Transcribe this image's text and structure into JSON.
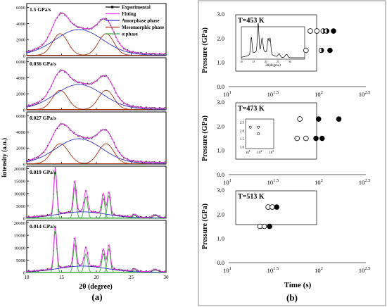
{
  "panel_labels": [
    "(a)",
    "(b)"
  ],
  "chart_data": [
    {
      "id": "panel-a",
      "type": "line",
      "xlabel": "2θ (degree)",
      "ylabel": "Intensity (a.u.)",
      "x_ticks": [
        10,
        15,
        20,
        25,
        30
      ],
      "xlim": [
        10,
        30
      ],
      "legend": {
        "placement": "top-right",
        "entries": [
          {
            "name": "Experimental",
            "color": "#000000",
            "style": "line-square"
          },
          {
            "name": "Fitting",
            "color": "#ff33ff",
            "style": "line"
          },
          {
            "name": "Amorphase phase",
            "color": "#3333cc",
            "style": "line"
          },
          {
            "name": "Mesomorphic phase",
            "color": "#aa3311",
            "style": "line"
          },
          {
            "name": "α phase",
            "color": "#33aa33",
            "style": "line"
          }
        ]
      },
      "subplots": [
        {
          "label": "1.5 GPa/s",
          "y_ticks": [
            0,
            2000,
            4000,
            6000
          ],
          "ylim": [
            0,
            6500
          ],
          "kind": "meso",
          "meso_peaks": [
            {
              "center": 14.8,
              "height": 2700,
              "width": 1.1
            },
            {
              "center": 21.4,
              "height": 2700,
              "width": 1.1
            }
          ],
          "amorphous": {
            "center": 17.5,
            "height": 3200,
            "width": 3.4
          },
          "baseline": 200
        },
        {
          "label": "0.036 GPa/s",
          "y_ticks": [
            0,
            2000,
            4000,
            6000
          ],
          "ylim": [
            0,
            6500
          ],
          "kind": "meso",
          "meso_peaks": [
            {
              "center": 14.8,
              "height": 2400,
              "width": 1.1
            },
            {
              "center": 21.4,
              "height": 2400,
              "width": 1.1
            }
          ],
          "amorphous": {
            "center": 17.5,
            "height": 3100,
            "width": 3.4
          },
          "baseline": 200
        },
        {
          "label": "0.027 GPa/s",
          "y_ticks": [
            0,
            2000,
            4000,
            6000
          ],
          "ylim": [
            0,
            6500
          ],
          "kind": "meso",
          "meso_peaks": [
            {
              "center": 14.8,
              "height": 2500,
              "width": 1.2
            },
            {
              "center": 21.4,
              "height": 2500,
              "width": 1.1
            }
          ],
          "amorphous": {
            "center": 17.5,
            "height": 3100,
            "width": 3.3
          },
          "baseline": 200
        },
        {
          "label": "0.019 GPa/s",
          "y_ticks": [
            0,
            5000,
            10000,
            15000,
            20000
          ],
          "ylim": [
            0,
            21000
          ],
          "kind": "alpha",
          "alpha_peaks": [
            {
              "center": 14.1,
              "height": 18500,
              "width": 0.22
            },
            {
              "center": 16.9,
              "height": 12500,
              "width": 0.22
            },
            {
              "center": 18.5,
              "height": 8500,
              "width": 0.25
            },
            {
              "center": 21.0,
              "height": 8000,
              "width": 0.22
            },
            {
              "center": 21.8,
              "height": 9000,
              "width": 0.22
            },
            {
              "center": 25.5,
              "height": 1000,
              "width": 0.3
            },
            {
              "center": 28.5,
              "height": 1000,
              "width": 0.4
            }
          ],
          "amorphous": {
            "center": 18.0,
            "height": 2500,
            "width": 3.5
          },
          "baseline": 300
        },
        {
          "label": "0.014 GPa/s",
          "y_ticks": [
            0,
            5000,
            10000,
            15000,
            20000
          ],
          "ylim": [
            0,
            21000
          ],
          "kind": "alpha",
          "alpha_peaks": [
            {
              "center": 14.1,
              "height": 16500,
              "width": 0.22
            },
            {
              "center": 16.9,
              "height": 11500,
              "width": 0.22
            },
            {
              "center": 18.5,
              "height": 7500,
              "width": 0.25
            },
            {
              "center": 21.0,
              "height": 7500,
              "width": 0.22
            },
            {
              "center": 21.8,
              "height": 9500,
              "width": 0.22
            },
            {
              "center": 25.5,
              "height": 900,
              "width": 0.3
            },
            {
              "center": 28.5,
              "height": 900,
              "width": 0.4
            }
          ],
          "amorphous": {
            "center": 18.0,
            "height": 2500,
            "width": 3.5
          },
          "baseline": 300
        }
      ]
    },
    {
      "id": "panel-b",
      "type": "scatter",
      "xlabel": "Time (s)",
      "ylabel": "Pressure (GPa)",
      "x_scale": "log10",
      "xlim": [
        10,
        316.2
      ],
      "x_ticks": [
        {
          "value": 10,
          "base": "10",
          "exp": "1"
        },
        {
          "value": 31.62,
          "base": "10",
          "exp": "1.5"
        },
        {
          "value": 100,
          "base": "10",
          "exp": "2"
        },
        {
          "value": 316.2,
          "base": "10",
          "exp": "2.5"
        }
      ],
      "y_ticks": [
        "0.0",
        "1.0",
        "2.0",
        "3.0"
      ],
      "ylim": [
        0,
        3
      ],
      "marker_fill": {
        "open": "#ffffff",
        "half": "half",
        "filled": "#000000"
      },
      "subplots": [
        {
          "label": "T=453 K",
          "points": [
            {
              "t": 70,
              "p": 1.5,
              "fill": "open"
            },
            {
              "t": 78,
              "p": 2.3,
              "fill": "open"
            },
            {
              "t": 92,
              "p": 2.3,
              "fill": "open"
            },
            {
              "t": 103,
              "p": 1.5,
              "fill": "half"
            },
            {
              "t": 108,
              "p": 2.3,
              "fill": "half"
            },
            {
              "t": 118,
              "p": 2.3,
              "fill": "half"
            },
            {
              "t": 128,
              "p": 1.5,
              "fill": "filled"
            },
            {
              "t": 140,
              "p": 2.3,
              "fill": "filled"
            }
          ],
          "inset": {
            "type": "line",
            "xlabel": "2θ(degree)",
            "x_ticks": [
              10,
              15,
              20,
              25,
              30
            ],
            "xlim": [
              10,
              36
            ],
            "peaks": [
              {
                "center": 14.1,
                "height": 0.6,
                "width": 0.3
              },
              {
                "center": 16.9,
                "height": 1.0,
                "width": 0.3
              },
              {
                "center": 18.5,
                "height": 0.45,
                "width": 0.35
              },
              {
                "center": 21.0,
                "height": 0.5,
                "width": 0.3
              },
              {
                "center": 21.8,
                "height": 0.55,
                "width": 0.3
              },
              {
                "center": 25.5,
                "height": 0.12,
                "width": 0.4
              },
              {
                "center": 28.5,
                "height": 0.12,
                "width": 0.5
              }
            ],
            "halo": {
              "center": 18.0,
              "height": 0.25,
              "width": 3.5
            }
          }
        },
        {
          "label": "T=473 K",
          "points": [
            {
              "t": 56,
              "p": 1.5,
              "fill": "open"
            },
            {
              "t": 60,
              "p": 2.3,
              "fill": "open"
            },
            {
              "t": 70,
              "p": 1.5,
              "fill": "open"
            },
            {
              "t": 90,
              "p": 1.5,
              "fill": "filled"
            },
            {
              "t": 96,
              "p": 2.3,
              "fill": "filled"
            },
            {
              "t": 105,
              "p": 1.5,
              "fill": "filled"
            },
            {
              "t": 160,
              "p": 2.3,
              "fill": "filled"
            }
          ],
          "inset": {
            "type": "scatter",
            "x_ticks": [
              {
                "base": "10",
                "exp": "1"
              },
              {
                "base": "10",
                "exp": "2"
              },
              {
                "base": "10",
                "exp": "3"
              }
            ],
            "y_ticks": [
              "1.0",
              "1.5",
              "2.0",
              "2.5"
            ],
            "xlim_log": [
              0.8,
              3.2
            ],
            "ylim": [
              0.9,
              2.7
            ],
            "points": [
              {
                "logt": 1.2,
                "p": 2.2
              },
              {
                "logt": 1.9,
                "p": 2.2
              },
              {
                "logt": 1.9,
                "p": 1.8
              }
            ]
          }
        },
        {
          "label": "T=513 K",
          "points": [
            {
              "t": 22,
              "p": 1.5,
              "fill": "open"
            },
            {
              "t": 24.5,
              "p": 1.5,
              "fill": "open"
            },
            {
              "t": 27,
              "p": 2.3,
              "fill": "open"
            },
            {
              "t": 28,
              "p": 1.5,
              "fill": "filled"
            },
            {
              "t": 30,
              "p": 2.3,
              "fill": "open"
            },
            {
              "t": 33.5,
              "p": 2.3,
              "fill": "filled"
            }
          ]
        }
      ]
    }
  ]
}
